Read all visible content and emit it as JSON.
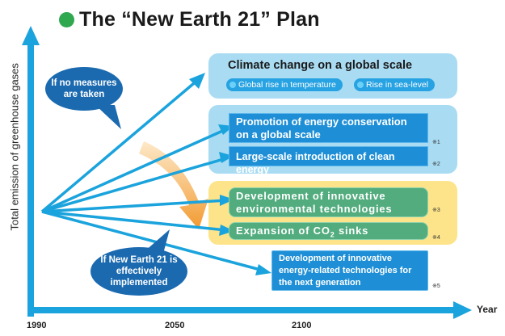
{
  "title": "The “New Earth 21” Plan",
  "y_axis_label": "Total emission of greenhouse gases",
  "x_axis_label": "Year",
  "years": [
    "1990",
    "2050",
    "2100"
  ],
  "bubbles": {
    "no_measures": [
      "If no measures",
      "are taken"
    ],
    "new_earth": [
      "If New Earth 21 is",
      "effectively",
      "implemented"
    ]
  },
  "climate_panel": {
    "title": "Climate change on a global scale",
    "items": [
      "Global rise in temperature",
      "Rise in sea-level"
    ]
  },
  "boxes": {
    "energy_conservation": [
      "Promotion of energy conservation",
      "on a global scale"
    ],
    "clean_energy": "Large-scale introduction of clean energy",
    "innovative_tech": [
      "Development of innovative",
      "environmental technologies"
    ],
    "co2_sinks_pre": "Expansion of CO",
    "co2_sinks_sub": "2",
    "co2_sinks_post": " sinks",
    "next_generation": [
      "Development of innovative",
      "energy-related technologies for",
      "the next generation"
    ]
  },
  "notes": [
    "※1",
    "※2",
    "※3",
    "※4",
    "※5"
  ],
  "colors": {
    "accent_green": "#2fa84f",
    "arrow_blue": "#1aa3dc",
    "box_blue": "#1e8fd6",
    "box_green": "#52ac7e",
    "panel_light_blue": "#a9dcf3",
    "panel_yellow": "#fde48a",
    "bubble_navy": "#1b6ab0"
  }
}
